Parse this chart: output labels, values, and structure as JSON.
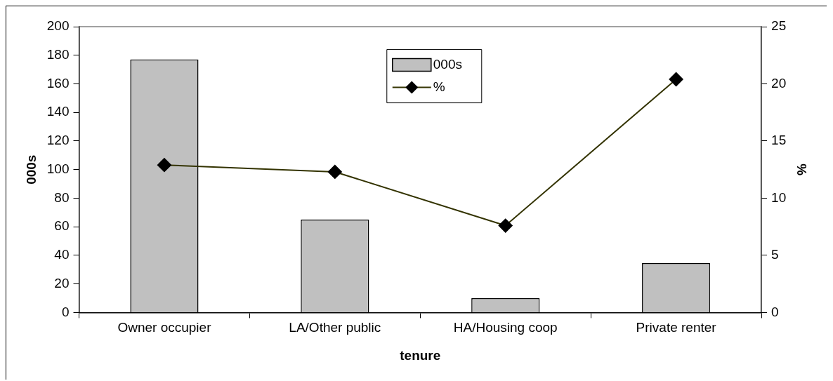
{
  "chart_data": {
    "type": "bar",
    "xlabel": "tenure",
    "ylabel": "000s",
    "y2label": "%",
    "categories": [
      "Owner occupier",
      "LA/Other public",
      "HA/Housing coop",
      "Private renter"
    ],
    "series": [
      {
        "name": "000s",
        "color": "#c0c0c0",
        "values": [
          177,
          65,
          10,
          34.5
        ]
      },
      {
        "name": "%",
        "type": "line",
        "axis": "y2",
        "color": "#333300",
        "values": [
          12.9,
          12.3,
          7.6,
          20.4
        ]
      }
    ],
    "ylim": [
      0,
      200
    ],
    "yticks": [
      0,
      20,
      40,
      60,
      80,
      100,
      120,
      140,
      160,
      180,
      200
    ],
    "y2lim": [
      0,
      25
    ],
    "y2ticks": [
      0,
      5,
      10,
      15,
      20,
      25
    ],
    "legend": "top",
    "marker": "diamond",
    "line_style": "solid",
    "grid": false
  }
}
